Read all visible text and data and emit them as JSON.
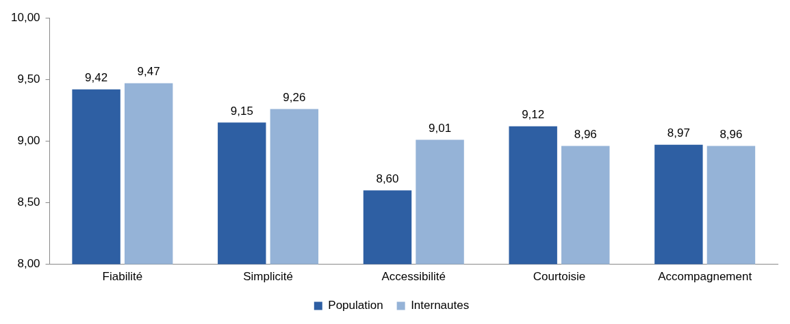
{
  "chart_data": {
    "type": "bar",
    "categories": [
      "Fiabilité",
      "Simplicité",
      "Accessibilité",
      "Courtoisie",
      "Accompagnement"
    ],
    "series": [
      {
        "name": "Population",
        "color": "#2e5fa3",
        "values": [
          9.42,
          9.15,
          8.6,
          9.12,
          8.97
        ],
        "value_labels": [
          "9,42",
          "9,15",
          "8,60",
          "9,12",
          "8,97"
        ]
      },
      {
        "name": "Internautes",
        "color": "#95b3d7",
        "values": [
          9.47,
          9.26,
          9.01,
          8.96,
          8.96
        ],
        "value_labels": [
          "9,47",
          "9,26",
          "9,01",
          "8,96",
          "8,96"
        ]
      }
    ],
    "ylim": [
      8,
      10
    ],
    "yticks": [
      {
        "value": 8,
        "label": "8,00"
      },
      {
        "value": 8.5,
        "label": "8,50"
      },
      {
        "value": 9,
        "label": "9,00"
      },
      {
        "value": 9.5,
        "label": "9,50"
      },
      {
        "value": 10,
        "label": "10,00"
      }
    ],
    "grid": false,
    "legend": "bottom"
  }
}
